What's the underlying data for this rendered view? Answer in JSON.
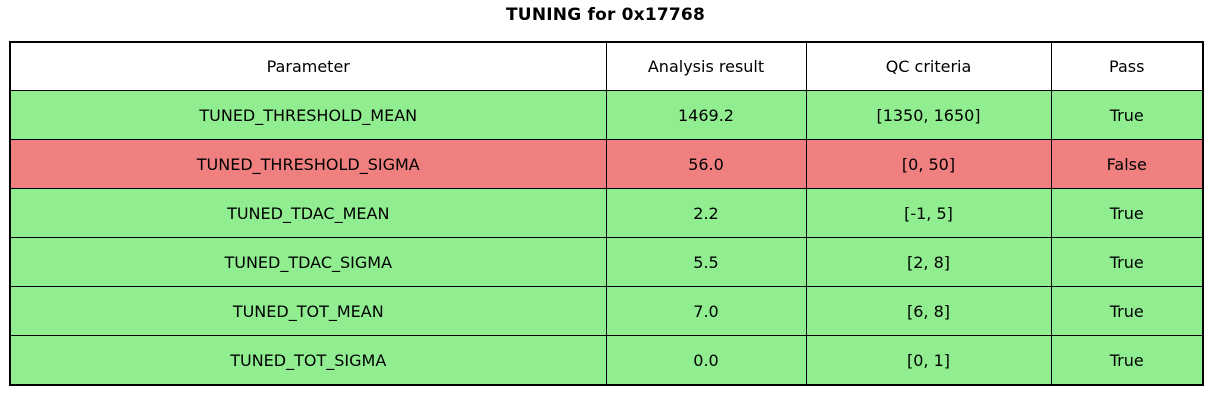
{
  "title": "TUNING for 0x17768",
  "chart_data": {
    "type": "table",
    "title": "TUNING for 0x17768",
    "columns": [
      "Parameter",
      "Analysis result",
      "QC criteria",
      "Pass"
    ],
    "rows": [
      {
        "parameter": "TUNED_THRESHOLD_MEAN",
        "result": "1469.2",
        "criteria": "[1350, 1650]",
        "pass": "True",
        "status": "pass"
      },
      {
        "parameter": "TUNED_THRESHOLD_SIGMA",
        "result": "56.0",
        "criteria": "[0, 50]",
        "pass": "False",
        "status": "fail"
      },
      {
        "parameter": "TUNED_TDAC_MEAN",
        "result": "2.2",
        "criteria": "[-1, 5]",
        "pass": "True",
        "status": "pass"
      },
      {
        "parameter": "TUNED_TDAC_SIGMA",
        "result": "5.5",
        "criteria": "[2, 8]",
        "pass": "True",
        "status": "pass"
      },
      {
        "parameter": "TUNED_TOT_MEAN",
        "result": "7.0",
        "criteria": "[6, 8]",
        "pass": "True",
        "status": "pass"
      },
      {
        "parameter": "TUNED_TOT_SIGMA",
        "result": "0.0",
        "criteria": "[0, 1]",
        "pass": "True",
        "status": "pass"
      }
    ],
    "colors": {
      "pass": "#90ee90",
      "fail": "#f08080",
      "header_bg": "#ffffff",
      "border": "#000000",
      "text": "#000000"
    },
    "layout": {
      "grid": true,
      "header_row": true,
      "legend": "none"
    }
  }
}
